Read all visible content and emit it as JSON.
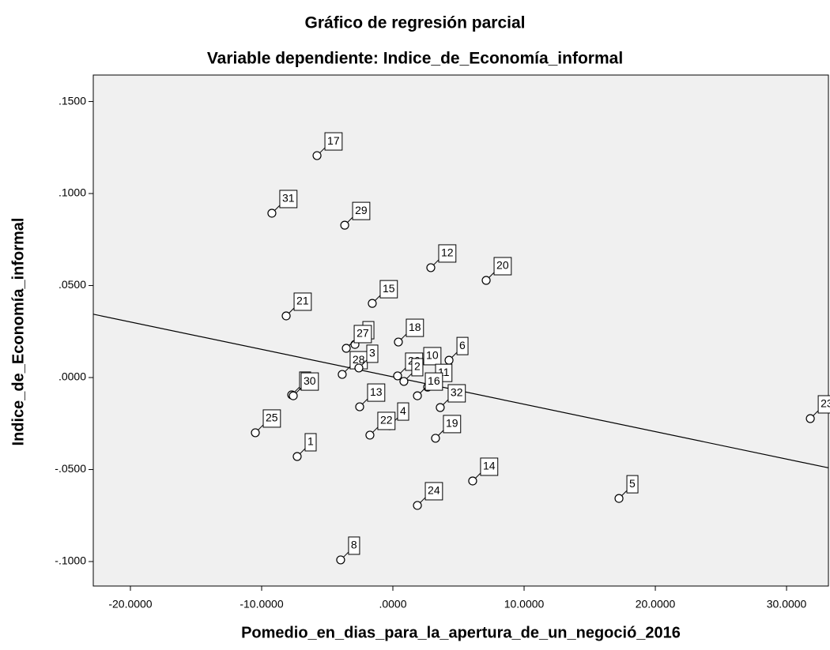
{
  "chart_data": {
    "type": "scatter",
    "title": "Gráfico de regresión parcial",
    "subtitle": "Variable dependiente: Indice_de_Economía_informal",
    "x_label": "Pomedio_en_dias_para_la_apertura_de_un_negoció_2016",
    "y_label": "Indice_de_Economía_informal",
    "point_labels": [
      "17",
      "31",
      "29",
      "12",
      "20",
      "15",
      "21",
      "18",
      "9",
      "27",
      "6",
      "10",
      "28",
      "26",
      "3",
      "2",
      "11",
      "16",
      "32",
      "13",
      "4",
      "22",
      "19",
      "14",
      "24",
      "5",
      "23",
      "25",
      "1",
      "8",
      "7",
      "30"
    ],
    "x": [
      -5.78,
      -9.22,
      -3.67,
      2.89,
      7.11,
      -1.57,
      -8.13,
      0.42,
      -2.89,
      -3.55,
      4.28,
      1.75,
      -3.86,
      0.36,
      -2.59,
      0.84,
      2.65,
      1.87,
      3.61,
      -2.53,
      -0.24,
      -1.75,
      3.25,
      6.08,
      1.87,
      17.23,
      31.81,
      -10.48,
      -7.29,
      -3.98,
      -7.71,
      -7.59
    ],
    "y": [
      0.1206,
      0.0893,
      0.0828,
      0.0597,
      0.0528,
      0.0403,
      0.0335,
      0.0193,
      0.018,
      0.0159,
      0.0094,
      0.0039,
      0.0017,
      0.0009,
      0.0052,
      -0.0021,
      -0.0052,
      -0.0099,
      -0.0163,
      -0.0159,
      -0.0262,
      -0.0313,
      -0.033,
      -0.0562,
      -0.0695,
      -0.0657,
      -0.0223,
      -0.03,
      -0.0429,
      -0.0991,
      -0.0094,
      -0.0099
    ],
    "fit_line": {
      "intercept": 0.0004,
      "slope": -0.00149
    },
    "xlim": [
      -22.83,
      33.19
    ],
    "ylim": [
      -0.1133,
      0.1644
    ],
    "xticks": [
      {
        "value": -20,
        "label": "-20.0000"
      },
      {
        "value": -10,
        "label": "-10.0000"
      },
      {
        "value": 0,
        "label": ".0000"
      },
      {
        "value": 10,
        "label": "10.0000"
      },
      {
        "value": 20,
        "label": "20.0000"
      },
      {
        "value": 30,
        "label": "30.0000"
      }
    ],
    "yticks": [
      {
        "value": -0.1,
        "label": "-.1000"
      },
      {
        "value": -0.05,
        "label": "-.0500"
      },
      {
        "value": 0,
        "label": ".0000"
      },
      {
        "value": 0.05,
        "label": ".0500"
      },
      {
        "value": 0.1,
        "label": ".1000"
      },
      {
        "value": 0.15,
        "label": ".1500"
      }
    ],
    "color": "#ffffff",
    "grid": false
  }
}
